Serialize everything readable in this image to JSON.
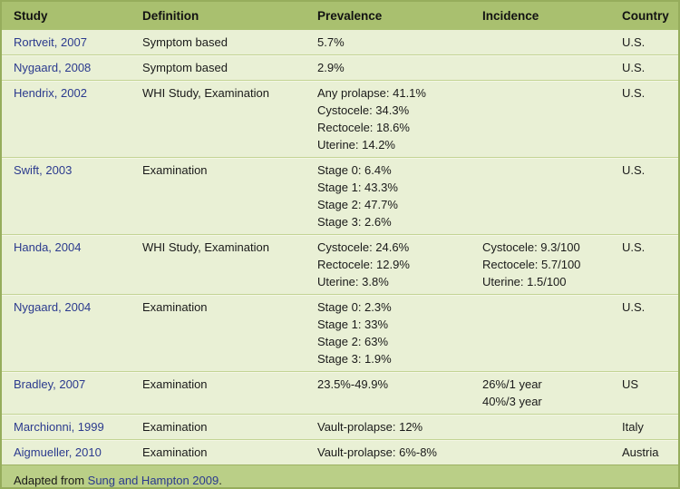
{
  "table": {
    "columns": [
      {
        "key": "study",
        "label": "Study"
      },
      {
        "key": "definition",
        "label": "Definition"
      },
      {
        "key": "prevalence",
        "label": "Prevalence"
      },
      {
        "key": "incidence",
        "label": "Incidence"
      },
      {
        "key": "country",
        "label": "Country"
      }
    ],
    "rows": [
      {
        "study": "Rortveit, 2007",
        "definition": "Symptom based",
        "prevalence": [
          "5.7%"
        ],
        "incidence": [],
        "country": "U.S."
      },
      {
        "study": "Nygaard, 2008",
        "definition": "Symptom based",
        "prevalence": [
          "2.9%"
        ],
        "incidence": [],
        "country": "U.S."
      },
      {
        "study": "Hendrix, 2002",
        "definition": "WHI Study, Examination",
        "prevalence": [
          "Any prolapse: 41.1%",
          "Cystocele: 34.3%",
          "Rectocele: 18.6%",
          "Uterine: 14.2%"
        ],
        "incidence": [],
        "country": "U.S."
      },
      {
        "study": "Swift, 2003",
        "definition": "Examination",
        "prevalence": [
          "Stage 0: 6.4%",
          "Stage 1: 43.3%",
          "Stage 2: 47.7%",
          "Stage 3: 2.6%"
        ],
        "incidence": [],
        "country": "U.S."
      },
      {
        "study": "Handa, 2004",
        "definition": "WHI Study, Examination",
        "prevalence": [
          "Cystocele: 24.6%",
          "Rectocele: 12.9%",
          "Uterine: 3.8%"
        ],
        "incidence": [
          "Cystocele: 9.3/100",
          "Rectocele: 5.7/100",
          "Uterine: 1.5/100"
        ],
        "country": "U.S."
      },
      {
        "study": "Nygaard, 2004",
        "definition": "Examination",
        "prevalence": [
          "Stage 0: 2.3%",
          "Stage 1: 33%",
          "Stage 2: 63%",
          "Stage 3: 1.9%"
        ],
        "incidence": [],
        "country": "U.S."
      },
      {
        "study": "Bradley, 2007",
        "definition": "Examination",
        "prevalence": [
          "23.5%-49.9%"
        ],
        "incidence": [
          "26%/1 year",
          "40%/3 year"
        ],
        "country": "US"
      },
      {
        "study": "Marchionni, 1999",
        "definition": "Examination",
        "prevalence": [
          "Vault-prolapse: 12%"
        ],
        "incidence": [],
        "country": "Italy"
      },
      {
        "study": "Aigmueller, 2010",
        "definition": "Examination",
        "prevalence": [
          "Vault-prolapse: 6%-8%"
        ],
        "incidence": [],
        "country": "Austria"
      }
    ],
    "footnote": {
      "prefix": "Adapted from ",
      "citation": "Sung and Hampton 2009",
      "suffix": "."
    }
  },
  "colors": {
    "header_bg": "#a9c06f",
    "row_bg": "#e9f0d5",
    "divider": "#c3d494",
    "footnote_bg": "#bacf87",
    "link_blue": "#2b3a8e",
    "text": "#1a1a1a"
  }
}
